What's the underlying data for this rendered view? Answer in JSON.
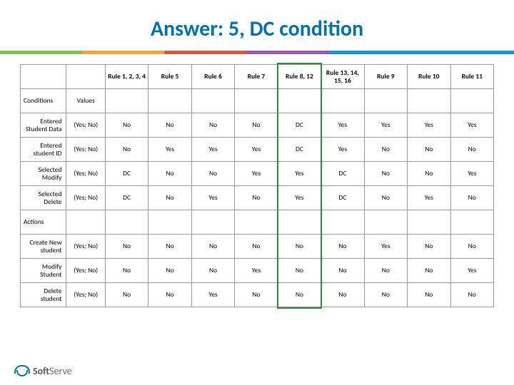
{
  "title": {
    "text": "Answer: 5, DC condition",
    "color": "#0073a8",
    "fontsize": 30
  },
  "stripe_colors": [
    "#7cc242",
    "#f5a623",
    "#e94f3d",
    "#9b59b6",
    "#00a0dc"
  ],
  "table": {
    "columns": [
      "",
      "",
      "Rule 1, 2, 3, 4",
      "Rule 5",
      "Rule 6",
      "Rule 7",
      "Rule 8, 12",
      "Rule 13, 14, 15, 16",
      "Rule 9",
      "Rule 10",
      "Rule 11"
    ],
    "rows": [
      {
        "type": "section",
        "cells": [
          "Conditions",
          "Values",
          "",
          "",
          "",
          "",
          "",
          "",
          "",
          "",
          ""
        ]
      },
      {
        "type": "data",
        "cells": [
          "Entered Student Data",
          "(Yes; No)",
          "No",
          "No",
          "No",
          "No",
          "DC",
          "Yes",
          "Yes",
          "Yes",
          "Yes"
        ]
      },
      {
        "type": "data",
        "cells": [
          "Entered student ID",
          "(Yes; No)",
          "No",
          "Yes",
          "Yes",
          "Yes",
          "DC",
          "Yes",
          "No",
          "No",
          "No"
        ]
      },
      {
        "type": "data",
        "cells": [
          "Selected Modify",
          "(Yes; No)",
          "DC",
          "No",
          "No",
          "Yes",
          "Yes",
          "DC",
          "No",
          "No",
          "Yes"
        ]
      },
      {
        "type": "data",
        "cells": [
          "Selected Delete",
          "(Yes; No)",
          "DC",
          "No",
          "Yes",
          "No",
          "Yes",
          "DC",
          "No",
          "Yes",
          "No"
        ]
      },
      {
        "type": "section",
        "cells": [
          "Actions",
          "",
          "",
          "",
          "",
          "",
          "",
          "",
          "",
          "",
          ""
        ]
      },
      {
        "type": "data",
        "cells": [
          "Create New student",
          "(Yes; No)",
          "No",
          "No",
          "No",
          "No",
          "No",
          "No",
          "Yes",
          "No",
          "No"
        ]
      },
      {
        "type": "data",
        "cells": [
          "Modify Student",
          "(Yes; No)",
          "No",
          "No",
          "No",
          "Yes",
          "No",
          "No",
          "No",
          "No",
          "Yes"
        ]
      },
      {
        "type": "data",
        "cells": [
          "Delete student",
          "(Yes; No)",
          "No",
          "No",
          "Yes",
          "No",
          "No",
          "No",
          "No",
          "No",
          "No"
        ]
      }
    ],
    "highlight": {
      "column_index": 6,
      "color": "#2e8b3d",
      "border_width": 2
    }
  },
  "footer": {
    "brand_bold": "Soft",
    "brand_light": "Serve",
    "logo_color": "#0073a8"
  }
}
